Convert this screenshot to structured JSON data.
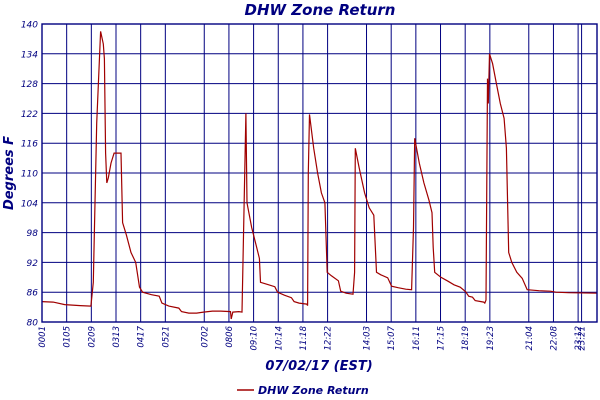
{
  "chart_data": {
    "type": "line",
    "title": "DHW Zone Return",
    "xlabel": "07/02/17 (EST)",
    "ylabel": "Degrees F",
    "ylim": [
      80,
      140
    ],
    "yticks": [
      80,
      86,
      92,
      98,
      104,
      110,
      116,
      122,
      128,
      134,
      140
    ],
    "xlim": [
      1,
      1441
    ],
    "xticks": [
      {
        "label": "0001",
        "minute": 1
      },
      {
        "label": "0105",
        "minute": 65
      },
      {
        "label": "0209",
        "minute": 129
      },
      {
        "label": "0313",
        "minute": 193
      },
      {
        "label": "0417",
        "minute": 257
      },
      {
        "label": "0521",
        "minute": 321
      },
      {
        "label": "0702",
        "minute": 422
      },
      {
        "label": "0806",
        "minute": 486
      },
      {
        "label": "09:10",
        "minute": 550
      },
      {
        "label": "10:14",
        "minute": 614
      },
      {
        "label": "11:18",
        "minute": 678
      },
      {
        "label": "12:22",
        "minute": 742
      },
      {
        "label": "14:03",
        "minute": 843
      },
      {
        "label": "15:07",
        "minute": 907
      },
      {
        "label": "16:11",
        "minute": 971
      },
      {
        "label": "17:15",
        "minute": 1035
      },
      {
        "label": "18:19",
        "minute": 1099
      },
      {
        "label": "19:23",
        "minute": 1163
      },
      {
        "label": "21:04",
        "minute": 1264
      },
      {
        "label": "22:08",
        "minute": 1328
      },
      {
        "label": "23:12",
        "minute": 1392
      },
      {
        "label": "23:21",
        "minute": 1401
      }
    ],
    "grid": true,
    "legend_position": "bottom-left",
    "series": [
      {
        "name": "DHW Zone Return",
        "color": "#a00000",
        "points": [
          [
            1,
            84.1
          ],
          [
            30,
            84.0
          ],
          [
            60,
            83.5
          ],
          [
            100,
            83.3
          ],
          [
            128,
            83.2
          ],
          [
            134,
            88
          ],
          [
            143,
            120
          ],
          [
            153,
            138.5
          ],
          [
            160,
            136
          ],
          [
            163,
            133
          ],
          [
            166,
            114
          ],
          [
            169,
            108
          ],
          [
            173,
            109
          ],
          [
            180,
            112
          ],
          [
            188,
            114
          ],
          [
            198,
            114
          ],
          [
            206,
            114
          ],
          [
            210,
            100
          ],
          [
            220,
            97.5
          ],
          [
            232,
            94
          ],
          [
            244,
            92
          ],
          [
            254,
            87
          ],
          [
            262,
            86
          ],
          [
            285,
            85.5
          ],
          [
            305,
            85.2
          ],
          [
            312,
            83.8
          ],
          [
            330,
            83.2
          ],
          [
            356,
            82.8
          ],
          [
            363,
            82.1
          ],
          [
            382,
            81.8
          ],
          [
            402,
            81.8
          ],
          [
            420,
            82.0
          ],
          [
            443,
            82.2
          ],
          [
            465,
            82.2
          ],
          [
            490,
            82.1
          ],
          [
            492,
            80.6
          ],
          [
            496,
            82.0
          ],
          [
            512,
            82.1
          ],
          [
            520,
            82.0
          ],
          [
            530,
            122
          ],
          [
            533,
            104
          ],
          [
            545,
            99
          ],
          [
            558,
            95
          ],
          [
            565,
            92.8
          ],
          [
            568,
            88
          ],
          [
            585,
            87.6
          ],
          [
            605,
            87.1
          ],
          [
            612,
            86
          ],
          [
            630,
            85.4
          ],
          [
            648,
            84.9
          ],
          [
            655,
            84.1
          ],
          [
            668,
            83.8
          ],
          [
            688,
            83.6
          ],
          [
            690,
            83.3
          ],
          [
            692,
            110
          ],
          [
            695,
            121.8
          ],
          [
            698,
            120
          ],
          [
            706,
            115
          ],
          [
            716,
            110
          ],
          [
            726,
            106
          ],
          [
            735,
            104
          ],
          [
            741,
            90
          ],
          [
            752,
            89.3
          ],
          [
            770,
            88.3
          ],
          [
            776,
            86.2
          ],
          [
            790,
            85.8
          ],
          [
            808,
            85.6
          ],
          [
            812,
            90
          ],
          [
            814,
            115
          ],
          [
            824,
            111
          ],
          [
            838,
            106
          ],
          [
            850,
            103
          ],
          [
            862,
            101.5
          ],
          [
            869,
            90
          ],
          [
            880,
            89.5
          ],
          [
            898,
            88.9
          ],
          [
            908,
            87.2
          ],
          [
            925,
            86.9
          ],
          [
            945,
            86.6
          ],
          [
            960,
            86.5
          ],
          [
            965,
            99
          ],
          [
            968,
            117
          ],
          [
            980,
            112
          ],
          [
            992,
            108
          ],
          [
            1005,
            104.5
          ],
          [
            1013,
            102
          ],
          [
            1016,
            95
          ],
          [
            1020,
            90
          ],
          [
            1036,
            89
          ],
          [
            1055,
            88.2
          ],
          [
            1070,
            87.5
          ],
          [
            1086,
            87
          ],
          [
            1100,
            86.1
          ],
          [
            1108,
            85.2
          ],
          [
            1118,
            85.0
          ],
          [
            1125,
            84.3
          ],
          [
            1140,
            84.1
          ],
          [
            1147,
            84.0
          ],
          [
            1150,
            83.8
          ],
          [
            1153,
            84.4
          ],
          [
            1157,
            129
          ],
          [
            1159,
            124
          ],
          [
            1162,
            134
          ],
          [
            1170,
            132
          ],
          [
            1180,
            128
          ],
          [
            1190,
            124
          ],
          [
            1200,
            121
          ],
          [
            1206,
            115
          ],
          [
            1212,
            94
          ],
          [
            1220,
            92
          ],
          [
            1233,
            90
          ],
          [
            1247,
            88.8
          ],
          [
            1260,
            86.5
          ],
          [
            1290,
            86.3
          ],
          [
            1320,
            86.2
          ],
          [
            1335,
            86.0
          ],
          [
            1366,
            85.9
          ],
          [
            1441,
            85.8
          ]
        ]
      }
    ]
  }
}
